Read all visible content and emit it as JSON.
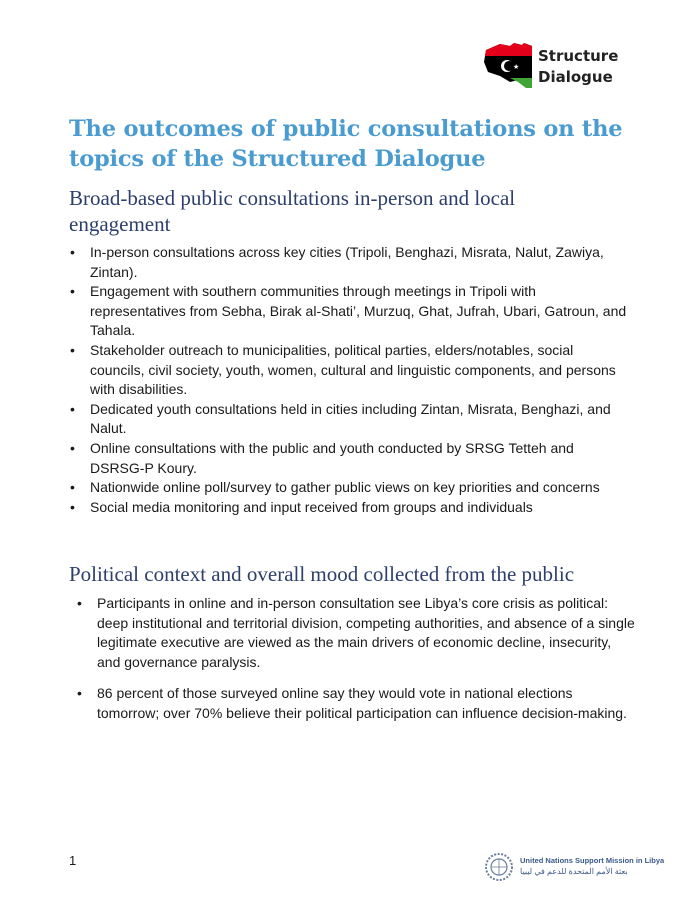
{
  "header": {
    "logo_text_line1": "Structure",
    "logo_text_line2": "Dialogue"
  },
  "title": "The outcomes of public consultations on the topics of the Structured Dialogue",
  "section1": {
    "heading": "Broad-based public consultations in-person and local engagement",
    "items": [
      "In-person consultations across key cities (Tripoli, Benghazi, Misrata, Nalut, Zawiya, Zintan).",
      "Engagement with southern communities through meetings in Tripoli with representatives from Sebha, Birak al-Shati’, Murzuq, Ghat, Jufrah, Ubari, Gatroun, and Tahala.",
      "Stakeholder outreach to municipalities, political parties, elders/notables, social councils, civil society, youth, women, cultural and linguistic components, and persons with disabilities.",
      "Dedicated youth consultations held in cities including Zintan, Misrata, Benghazi, and Nalut.",
      "Online consultations with the public and youth conducted by SRSG Tetteh and DSRSG-P Koury.",
      "Nationwide online poll/survey to gather public views on key priorities and concerns",
      "Social media monitoring and input received from groups and individuals"
    ]
  },
  "section2": {
    "heading": "Political context and overall mood collected from the public",
    "items": [
      "Participants in online and in-person consultation see Libya’s core crisis as political: deep institutional and territorial division, competing authorities, and absence of a single legitimate executive are viewed as the main drivers of economic decline, insecurity, and governance paralysis.",
      "86 percent of those surveyed online say they would vote in national elections tomorrow; over 70% believe their political participation can influence decision-making."
    ]
  },
  "footer": {
    "page_number": "1",
    "org_name_en": "United Nations Support Mission in Libya",
    "org_name_ar": "بعثة الأمم المتحدة للدعم في ليبيا"
  },
  "colors": {
    "title": "#4a9bd0",
    "heading": "#2c3e6b",
    "flag_red": "#e2001a",
    "flag_black": "#000000",
    "flag_green": "#3fa535"
  }
}
